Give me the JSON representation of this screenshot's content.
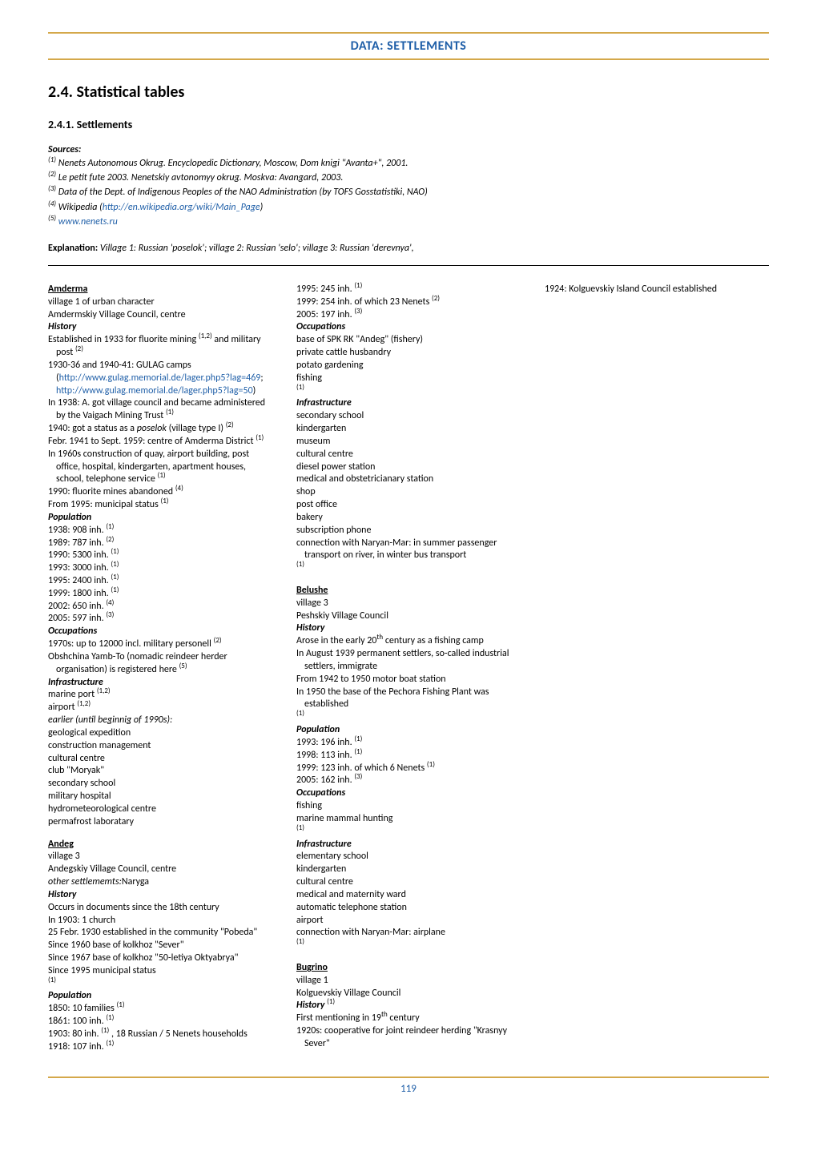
{
  "header": "DATA: SETTLEMENTS",
  "section_title": "2.4. Statistical tables",
  "subsection_title": "2.4.1. Settlements",
  "sources_label": "Sources:",
  "sources": [
    {
      "num": "(1)",
      "text": "Nenets Autonomous Okrug. Encyclopedic Dictionary, Moscow, Dom knigi \"Avanta+\", 2001."
    },
    {
      "num": "(2)",
      "text": "Le petit fute 2003. Nenetskiy avtonomyy okrug. Moskva: Avangard, 2003."
    },
    {
      "num": "(3)",
      "text": "Data of the Dept. of Indigenous Peoples of the NAO Administration (by TOFS Gosstatistiki, NAO)"
    },
    {
      "num": "(4)",
      "text_pre": "Wikipedia (",
      "link": "http://en.wikipedia.org/wiki/Main_Page",
      "text_post": ")"
    },
    {
      "num": "(5)",
      "link": "www.nenets.ru"
    }
  ],
  "explanation_label": "Explanation:",
  "explanation_text": "Village 1: Russian 'poselok'; village 2: Russian 'selo'; village 3: Russian 'derevnya',",
  "page_number": "119",
  "content": [
    {
      "t": "name",
      "v": "Amderma"
    },
    {
      "t": "line",
      "v": "village 1 of urban character"
    },
    {
      "t": "line",
      "v": "Amdermskiy Village Council, centre"
    },
    {
      "t": "sub",
      "v": "History"
    },
    {
      "t": "line",
      "v": "Established in 1933 for fluorite mining <sup>(1,2)</sup> and military post <sup>(2)</sup>"
    },
    {
      "t": "line",
      "v": "1930-36 and 1940-41: GULAG camps (<span class='link'>http://www.gulag.memorial.de/lager.php5?lag=469</span>; <span class='link'>http://www.gulag.memorial.de/lager.php5?lag=50</span>)"
    },
    {
      "t": "line",
      "v": "In 1938: A. got village council and became administered by the Vaigach Mining Trust <sup>(1)</sup>"
    },
    {
      "t": "line",
      "v": "1940: got a status as a <i>poselok</i> (village type I) <sup>(2)</sup>"
    },
    {
      "t": "line",
      "v": "Febr. 1941 to Sept. 1959: centre of Amderma District <sup>(1)</sup>"
    },
    {
      "t": "line",
      "v": "In 1960s construction of quay, airport building, post office, hospital, kindergarten, apartment houses, school, telephone service <sup>(1)</sup>"
    },
    {
      "t": "line",
      "v": "1990: fluorite mines abandoned <sup>(4)</sup>"
    },
    {
      "t": "line",
      "v": "From 1995: municipal status <sup>(1)</sup>"
    },
    {
      "t": "sub",
      "v": "Population"
    },
    {
      "t": "line",
      "v": "1938: 908 inh. <sup>(1)</sup>"
    },
    {
      "t": "line",
      "v": "1989: 787 inh. <sup>(2)</sup>"
    },
    {
      "t": "line",
      "v": "1990: 5300 inh. <sup>(1)</sup>"
    },
    {
      "t": "line",
      "v": "1993: 3000 inh. <sup>(1)</sup>"
    },
    {
      "t": "line",
      "v": "1995: 2400 inh. <sup>(1)</sup>"
    },
    {
      "t": "line",
      "v": "1999: 1800 inh. <sup>(1)</sup>"
    },
    {
      "t": "line",
      "v": "2002: 650 inh. <sup>(4)</sup>"
    },
    {
      "t": "line",
      "v": "2005: 597 inh. <sup>(3)</sup>"
    },
    {
      "t": "sub",
      "v": "Occupations"
    },
    {
      "t": "line",
      "v": "1970s: up to 12000 incl. military personell <sup>(2)</sup>"
    },
    {
      "t": "line",
      "v": "Obshchina Yamb-To (nomadic reindeer herder organisation) is registered here <sup>(5)</sup>"
    },
    {
      "t": "sub",
      "v": "Infrastructure"
    },
    {
      "t": "line",
      "v": "marine port <sup>(1,2)</sup>"
    },
    {
      "t": "line",
      "v": "airport <sup>(1,2)</sup>"
    },
    {
      "t": "line",
      "v": "<i>earlier (until beginnig of 1990s):</i>"
    },
    {
      "t": "line",
      "v": "geological expedition"
    },
    {
      "t": "line",
      "v": "construction management"
    },
    {
      "t": "line",
      "v": "cultural centre"
    },
    {
      "t": "line",
      "v": "club \"Moryak\""
    },
    {
      "t": "line",
      "v": "secondary school"
    },
    {
      "t": "line",
      "v": "military hospital"
    },
    {
      "t": "line",
      "v": "hydrometeorological centre"
    },
    {
      "t": "line",
      "v": "permafrost laboratary"
    },
    {
      "t": "gap"
    },
    {
      "t": "name",
      "v": "Andeg"
    },
    {
      "t": "line",
      "v": "village 3"
    },
    {
      "t": "line",
      "v": "Andegskiy Village Council, centre"
    },
    {
      "t": "line",
      "v": "<i>other settlememts:</i>Naryga"
    },
    {
      "t": "sub",
      "v": "History"
    },
    {
      "t": "line",
      "v": "Occurs in documents since the 18th century"
    },
    {
      "t": "line",
      "v": "In 1903: 1 church"
    },
    {
      "t": "line",
      "v": "25 Febr. 1930 established in the community \"Pobeda\""
    },
    {
      "t": "line",
      "v": "Since 1960 base of kolkhoz \"Sever\""
    },
    {
      "t": "line",
      "v": "Since 1967 base of kolkhoz \"50-letiya Oktyabrya\""
    },
    {
      "t": "line",
      "v": "Since 1995 municipal status"
    },
    {
      "t": "line",
      "v": "<sup>(1)</sup>"
    },
    {
      "t": "sub",
      "v": "Population"
    },
    {
      "t": "line",
      "v": "1850: 10 families <sup>(1)</sup>"
    },
    {
      "t": "line",
      "v": "1861: 100 inh. <sup>(1)</sup>"
    },
    {
      "t": "line",
      "v": "1903: 80 inh. <sup>(1)</sup> , 18 Russian / 5 Nenets households"
    },
    {
      "t": "line",
      "v": "1918: 107 inh. <sup>(1)</sup>"
    },
    {
      "t": "line",
      "v": "1995: 245 inh. <sup>(1)</sup>"
    },
    {
      "t": "line",
      "v": "1999: 254 inh. of which 23 Nenets <sup>(2)</sup>"
    },
    {
      "t": "line",
      "v": "2005: 197 inh. <sup>(3)</sup>"
    },
    {
      "t": "sub",
      "v": "Occupations"
    },
    {
      "t": "line",
      "v": "base of SPK RK \"Andeg\" (fishery)"
    },
    {
      "t": "line",
      "v": "private cattle husbandry"
    },
    {
      "t": "line",
      "v": "potato gardening"
    },
    {
      "t": "line",
      "v": "fishing"
    },
    {
      "t": "line",
      "v": "<sup>(1)</sup>"
    },
    {
      "t": "sub",
      "v": "Infrastructure"
    },
    {
      "t": "line",
      "v": "secondary school"
    },
    {
      "t": "line",
      "v": "kindergarten"
    },
    {
      "t": "line",
      "v": "museum"
    },
    {
      "t": "line",
      "v": "cultural centre"
    },
    {
      "t": "line",
      "v": "diesel power station"
    },
    {
      "t": "line",
      "v": "medical and obstetricianary station"
    },
    {
      "t": "line",
      "v": "shop"
    },
    {
      "t": "line",
      "v": "post office"
    },
    {
      "t": "line",
      "v": "bakery"
    },
    {
      "t": "line",
      "v": "subscription phone"
    },
    {
      "t": "line",
      "v": "connection with Naryan-Mar: in summer passenger transport on river, in winter bus transport"
    },
    {
      "t": "line",
      "v": "<sup>(1)</sup>"
    },
    {
      "t": "gap"
    },
    {
      "t": "name",
      "v": "Belushe"
    },
    {
      "t": "line",
      "v": "village 3"
    },
    {
      "t": "line",
      "v": "Peshskiy Village Council"
    },
    {
      "t": "sub",
      "v": "History"
    },
    {
      "t": "line",
      "v": "Arose in the early 20<sup>th</sup> century as a fishing camp"
    },
    {
      "t": "line",
      "v": "In August 1939 permanent settlers, so-called industrial settlers, immigrate"
    },
    {
      "t": "line",
      "v": "From 1942 to 1950 motor boat station"
    },
    {
      "t": "line",
      "v": "In 1950 the base of the Pechora Fishing Plant was established"
    },
    {
      "t": "line",
      "v": "<sup>(1)</sup>"
    },
    {
      "t": "sub",
      "v": "Population"
    },
    {
      "t": "line",
      "v": "1993: 196 inh. <sup>(1)</sup>"
    },
    {
      "t": "line",
      "v": "1998: 113 inh. <sup>(1)</sup>"
    },
    {
      "t": "line",
      "v": "1999: 123 inh. of which 6 Nenets <sup>(1)</sup>"
    },
    {
      "t": "line",
      "v": "2005: 162 inh. <sup>(3)</sup>"
    },
    {
      "t": "sub",
      "v": "Occupations"
    },
    {
      "t": "line",
      "v": "fishing"
    },
    {
      "t": "line",
      "v": "marine mammal hunting"
    },
    {
      "t": "line",
      "v": "<sup>(1)</sup>"
    },
    {
      "t": "sub",
      "v": "Infrastructure"
    },
    {
      "t": "line",
      "v": "elementary school"
    },
    {
      "t": "line",
      "v": "kindergarten"
    },
    {
      "t": "line",
      "v": "cultural centre"
    },
    {
      "t": "line",
      "v": "medical and maternity ward"
    },
    {
      "t": "line",
      "v": "automatic telephone station"
    },
    {
      "t": "line",
      "v": "airport"
    },
    {
      "t": "line",
      "v": "connection with Naryan-Mar: airplane"
    },
    {
      "t": "line",
      "v": "<sup>(1)</sup>"
    },
    {
      "t": "gap"
    },
    {
      "t": "name",
      "v": "Bugrino"
    },
    {
      "t": "line",
      "v": "village 1"
    },
    {
      "t": "line",
      "v": "Kolguevskiy Village Council"
    },
    {
      "t": "subsup",
      "v": "History",
      "sup": "(1)"
    },
    {
      "t": "line",
      "v": "First mentioning in 19<sup>th</sup> century"
    },
    {
      "t": "line",
      "v": "1920s: cooperative for joint reindeer herding \"Krasnyy Sever\""
    },
    {
      "t": "line",
      "v": "1924: Kolguevskiy Island Council established"
    }
  ]
}
